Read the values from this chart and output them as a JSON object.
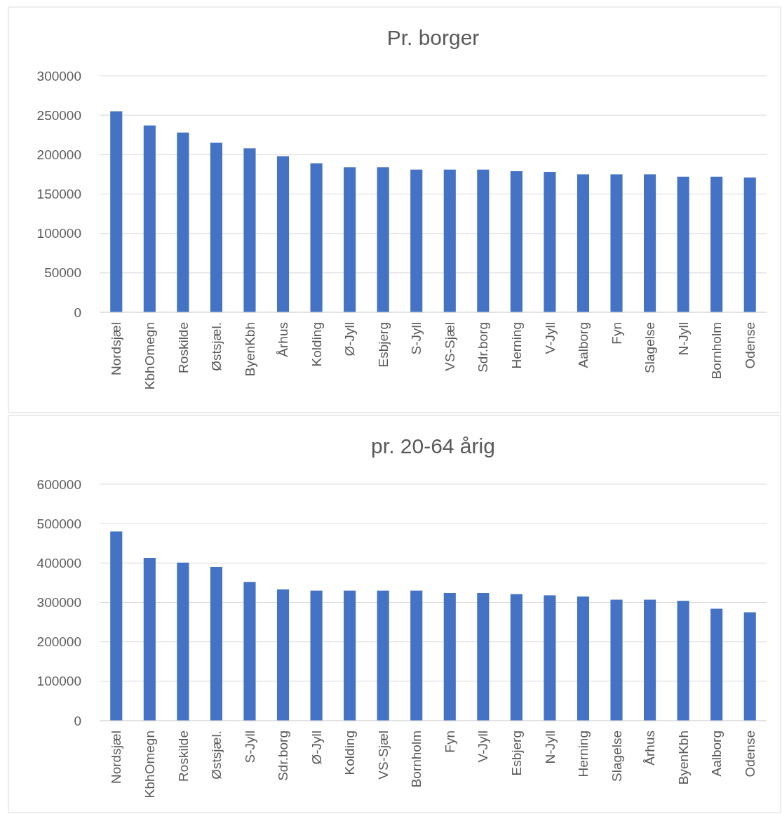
{
  "chart_data": [
    {
      "type": "bar",
      "title": "Pr. borger",
      "categories": [
        "Nordsjæl",
        "KbhOmegn",
        "Roskilde",
        "Østsjæl.",
        "ByenKbh",
        "Århus",
        "Kolding",
        "Ø-Jyll",
        "Esbjerg",
        "S-Jyll",
        "VS-Sjæl",
        "Sdr.borg",
        "Herning",
        "V-Jyll",
        "Aalborg",
        "Fyn",
        "Slagelse",
        "N-Jyll",
        "Bornholm",
        "Odense"
      ],
      "values": [
        255000,
        237000,
        228000,
        215000,
        208000,
        198000,
        189000,
        184000,
        184000,
        181000,
        181000,
        181000,
        179000,
        178000,
        175000,
        175000,
        175000,
        172000,
        172000,
        171000
      ],
      "color": "#4472c4",
      "ylim": [
        0,
        300000
      ],
      "yticks": [
        0,
        50000,
        100000,
        150000,
        200000,
        250000,
        300000
      ],
      "grid": "y"
    },
    {
      "type": "bar",
      "title": "pr. 20-64 årig",
      "categories": [
        "Nordsjæl",
        "KbhOmegn",
        "Roskilde",
        "Østsjæl.",
        "S-Jyll",
        "Sdr.borg",
        "Ø-Jyll",
        "Kolding",
        "VS-Sjæl",
        "Bornholm",
        "Fyn",
        "V-Jyll",
        "Esbjerg",
        "N-Jyll",
        "Herning",
        "Slagelse",
        "Århus",
        "ByenKbh",
        "Aalborg",
        "Odense"
      ],
      "values": [
        480000,
        413000,
        401000,
        390000,
        352000,
        333000,
        330000,
        330000,
        330000,
        330000,
        324000,
        324000,
        321000,
        318000,
        315000,
        307000,
        307000,
        304000,
        284000,
        275000
      ],
      "color": "#4472c4",
      "ylim": [
        0,
        600000
      ],
      "yticks": [
        0,
        100000,
        200000,
        300000,
        400000,
        500000,
        600000
      ],
      "grid": "y"
    }
  ]
}
